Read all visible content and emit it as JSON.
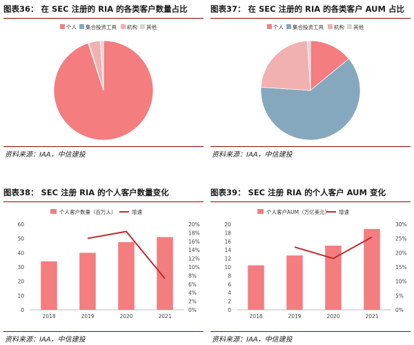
{
  "panels": [
    {
      "title": "图表36： 在 SEC 注册的 RIA 的各类客户数量占比",
      "source": "资料来源：IAA，中信建投"
    },
    {
      "title": "图表37： 在 SEC 注册的 RIA 的各类客户 AUM 占比",
      "source": "资料来源：IAA，中信建投"
    },
    {
      "title": "图表38： SEC 注册 RIA 的个人客户数量变化",
      "source": "资料来源：IAA，中信建投"
    },
    {
      "title": "图表39： SEC 注册 RIA 的个人客户 AUM 变化",
      "source": "资料来源：IAA，中信建投"
    }
  ],
  "chart_data": [
    {
      "type": "pie",
      "title": "",
      "labels": [
        "个人",
        "集合投资工具",
        "机构",
        "其他"
      ],
      "values": [
        95.0,
        0.3,
        3.7,
        1.0
      ],
      "colors": [
        "#f47d7f",
        "#86a8bf",
        "#f1b1b1",
        "#d6d6d6"
      ],
      "legend": "top"
    },
    {
      "type": "pie",
      "title": "",
      "labels": [
        "个人",
        "集合投资工具",
        "机构",
        "其他"
      ],
      "values": [
        14,
        62,
        23,
        1
      ],
      "colors": [
        "#f47d7f",
        "#86a8bf",
        "#f1b1b1",
        "#d6d6d6"
      ],
      "legend": "top"
    },
    {
      "type": "bar",
      "title": "",
      "categories": [
        "2018",
        "2019",
        "2020",
        "2021"
      ],
      "series": [
        {
          "name": "个人客户数量（百万人）",
          "type": "bar",
          "axis": "left",
          "values": [
            34,
            40,
            47.5,
            51
          ],
          "color": "#f47d7f"
        },
        {
          "name": "增速",
          "type": "line",
          "axis": "right",
          "values": [
            null,
            0.167,
            0.183,
            0.073
          ],
          "color": "#c0282d"
        }
      ],
      "ylim": [
        0,
        60
      ],
      "yticks": [
        "0",
        "10",
        "20",
        "30",
        "40",
        "50",
        "60"
      ],
      "y2lim": [
        0,
        0.2
      ],
      "y2ticks": [
        "0%",
        "2%",
        "4%",
        "6%",
        "8%",
        "10%",
        "12%",
        "14%",
        "16%",
        "18%",
        "20%"
      ],
      "legend": "top",
      "grid": false
    },
    {
      "type": "bar",
      "title": "",
      "categories": [
        "2018",
        "2019",
        "2020",
        "2021"
      ],
      "series": [
        {
          "name": "个人客户AUM（万亿美元）",
          "type": "bar",
          "axis": "left",
          "values": [
            10.4,
            12.7,
            15.0,
            18.9
          ],
          "color": "#f47d7f"
        },
        {
          "name": "增速",
          "type": "line",
          "axis": "right",
          "values": [
            null,
            0.22,
            0.18,
            0.255
          ],
          "color": "#c0282d"
        }
      ],
      "ylim": [
        0,
        20
      ],
      "yticks": [
        "0",
        "2",
        "4",
        "6",
        "8",
        "10",
        "12",
        "14",
        "16",
        "18",
        "20"
      ],
      "y2lim": [
        0,
        0.3
      ],
      "y2ticks": [
        "0%",
        "5%",
        "10%",
        "15%",
        "20%",
        "25%",
        "30%"
      ],
      "legend": "top",
      "grid": false
    }
  ]
}
